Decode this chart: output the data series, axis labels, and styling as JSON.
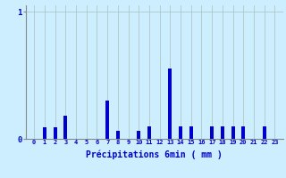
{
  "categories": [
    0,
    1,
    2,
    3,
    4,
    5,
    6,
    7,
    8,
    9,
    10,
    11,
    12,
    13,
    14,
    15,
    16,
    17,
    18,
    19,
    20,
    21,
    22,
    23
  ],
  "values": [
    0.0,
    0.09,
    0.09,
    0.18,
    0.0,
    0.0,
    0.0,
    0.3,
    0.06,
    0.0,
    0.06,
    0.1,
    0.0,
    0.55,
    0.1,
    0.1,
    0.0,
    0.1,
    0.1,
    0.1,
    0.1,
    0.0,
    0.1,
    0.0
  ],
  "bar_color": "#0000cc",
  "background_color": "#cceeff",
  "grid_color": "#b0c8c8",
  "xlabel": "Précipitations 6min ( mm )",
  "xlabel_color": "#0000cc",
  "xtick_color": "#0000cc",
  "ytick_color": "#0000cc",
  "ylim": [
    0,
    1.05
  ],
  "yticks": [
    0,
    1
  ],
  "spine_color": "#888888"
}
